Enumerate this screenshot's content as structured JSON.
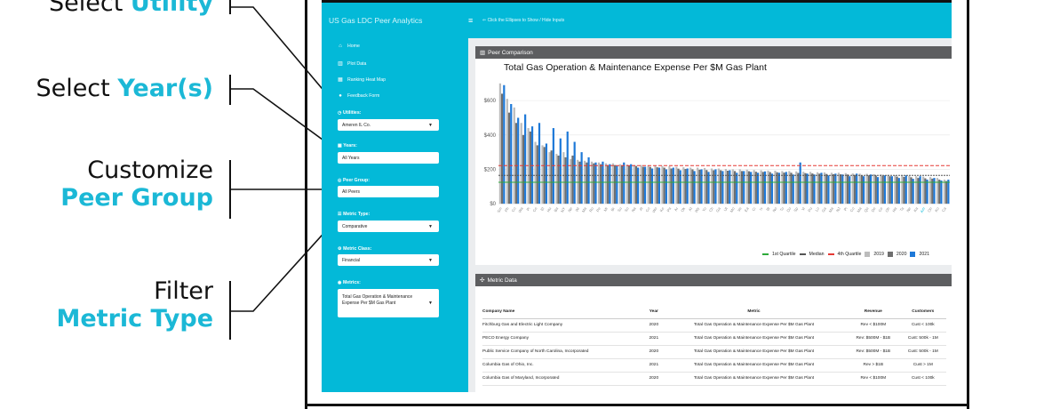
{
  "callouts": {
    "utility": {
      "plain": "Select ",
      "accent": "Utility"
    },
    "years": {
      "plain": "Select ",
      "accent": "Year(s)"
    },
    "peer": {
      "plain": "Customize",
      "accent": "Peer Group"
    },
    "metric": {
      "plain": "Filter",
      "accent": "Metric Type"
    }
  },
  "header": {
    "app_title": "US Gas LDC Peer Analytics",
    "menu_icon": "hamburger-icon",
    "hint": "⇐ Click the Ellipses to Show / Hide Inputs"
  },
  "sidebar": {
    "nav": [
      {
        "icon": "home-icon",
        "glyph": "⌂",
        "label": "Home"
      },
      {
        "icon": "chart-icon",
        "glyph": "▥",
        "label": "Plot Data"
      },
      {
        "icon": "table-icon",
        "glyph": "▦",
        "label": "Ranking Heat Map"
      },
      {
        "icon": "comment-icon",
        "glyph": "●",
        "label": "Feedback Form"
      }
    ],
    "utilities": {
      "label": "Utilities:",
      "value": "Ameren IL Co."
    },
    "years": {
      "label": "Years:",
      "value": "All Years"
    },
    "peer_group": {
      "label": "Peer Group:",
      "value": "All Peers"
    },
    "metric_type": {
      "label": "Metric Type:",
      "value": "Comparative"
    },
    "metric_class": {
      "label": "Metric Class:",
      "value": "Financial"
    },
    "metrics": {
      "label": "Metrics:",
      "value": "Total Gas Operation & Maintenance Expense Per $M Gas Plant"
    }
  },
  "peer_panel": {
    "title": "Peer Comparison",
    "chart_title": "Total Gas Operation & Maintenance Expense Per $M Gas Plant"
  },
  "chart_data": {
    "type": "bar",
    "title": "Total Gas Operation & Maintenance Expense Per $M Gas Plant",
    "xlabel": "",
    "ylabel": "",
    "yticks": [
      "$0",
      "$200",
      "$400",
      "$600"
    ],
    "ylim": [
      -20,
      730
    ],
    "reference_lines": {
      "first_quartile": 125,
      "median": 165,
      "fourth_quartile": 222
    },
    "series": [
      {
        "name": "2019",
        "color": "#bcbcbc",
        "values": [
          700,
          610,
          560,
          470,
          440,
          360,
          340,
          300,
          290,
          300,
          260,
          255,
          250,
          245,
          240,
          235,
          235,
          230,
          228,
          225,
          225,
          222,
          220,
          220,
          218,
          215,
          212,
          210,
          210,
          208,
          205,
          205,
          202,
          200,
          200,
          198,
          196,
          195,
          193,
          192,
          190,
          190,
          188,
          186,
          185,
          183,
          182,
          180,
          180,
          178,
          176,
          175,
          174,
          172,
          170,
          168,
          166,
          165,
          162,
          160,
          158,
          155,
          150,
          140
        ]
      },
      {
        "name": "2020",
        "color": "#6f6f6f",
        "values": [
          640,
          530,
          470,
          400,
          420,
          340,
          330,
          310,
          280,
          270,
          280,
          245,
          240,
          235,
          230,
          225,
          225,
          224,
          222,
          220,
          215,
          214,
          212,
          210,
          205,
          204,
          202,
          200,
          198,
          196,
          195,
          195,
          192,
          190,
          190,
          189,
          186,
          185,
          184,
          183,
          181,
          180,
          179,
          178,
          176,
          175,
          173,
          172,
          171,
          170,
          168,
          166,
          165,
          164,
          162,
          160,
          158,
          156,
          154,
          150,
          148,
          146,
          140,
          132
        ]
      },
      {
        "name": "2021",
        "color": "#1e79d8",
        "values": [
          690,
          580,
          500,
          520,
          450,
          470,
          350,
          440,
          380,
          420,
          360,
          300,
          270,
          240,
          245,
          230,
          220,
          240,
          230,
          210,
          215,
          205,
          210,
          200,
          210,
          195,
          205,
          190,
          200,
          185,
          200,
          190,
          195,
          180,
          190,
          185,
          180,
          188,
          175,
          180,
          185,
          170,
          240,
          175,
          170,
          180,
          165,
          175,
          170,
          160,
          175,
          160,
          170,
          155,
          165,
          160,
          150,
          165,
          145,
          160,
          140,
          150,
          135,
          140
        ]
      }
    ],
    "categories": [
      "Sm",
      "Ph",
      "Co",
      "Wa",
      "Pi",
      "Ce",
      "El",
      "Hu",
      "Ba",
      "NY",
      "Ne",
      "Wi",
      "Ma",
      "Ro",
      "Pe",
      "Mi",
      "Br",
      "Su",
      "So",
      "Na",
      "Al",
      "Co",
      "Wo",
      "Ke",
      "Pa",
      "Ar",
      "Ok",
      "At",
      "Wy",
      "Yo",
      "Ch",
      "Ga",
      "Ut",
      "Mo",
      "Ve",
      "Ea",
      "Ci",
      "Iv",
      "Bl",
      "No",
      "To",
      "Do",
      "Sp",
      "Vi",
      "Pu",
      "Lo",
      "Ga",
      "Ma",
      "NJ",
      "Pi",
      "Co",
      "Ma",
      "Qu",
      "De",
      "Ce",
      "Oh",
      "Ha",
      "Ta",
      "Ne",
      "Ka",
      "Am",
      "On",
      "Ko",
      "Ca"
    ],
    "highlight_index": 60,
    "legend": [
      {
        "kind": "line",
        "label": "1st Quartile",
        "color": "#2eaa3a"
      },
      {
        "kind": "line",
        "label": "Median",
        "color": "#555555"
      },
      {
        "kind": "line",
        "label": "4th Quartile",
        "color": "#e53935"
      },
      {
        "kind": "box",
        "label": "2019",
        "color": "#bcbcbc"
      },
      {
        "kind": "box",
        "label": "2020",
        "color": "#6f6f6f"
      },
      {
        "kind": "box",
        "label": "2021",
        "color": "#1e79d8"
      }
    ]
  },
  "metric_panel": {
    "title": "Metric Data",
    "columns": [
      "Company Name",
      "Year",
      "Metric",
      "Revenue",
      "Customers"
    ],
    "rows": [
      [
        "Fitchburg Gas and Electric Light Company",
        "2020",
        "Total Gas Operation & Maintenance Expense Per $M Gas Plant",
        "Rev < $100M",
        "Cust < 100k"
      ],
      [
        "PECO Energy Company",
        "2021",
        "Total Gas Operation & Maintenance Expense Per $M Gas Plant",
        "Rev: $500M - $1B",
        "Cust: 500k - 1M"
      ],
      [
        "Public Service Company of North Carolina, Incorporated",
        "2020",
        "Total Gas Operation & Maintenance Expense Per $M Gas Plant",
        "Rev: $500M - $1B",
        "Cust: 500k - 1M"
      ],
      [
        "Columbia Gas of Ohio, Inc.",
        "2021",
        "Total Gas Operation & Maintenance Expense Per $M Gas Plant",
        "Rev > $1B",
        "Cust > 1M"
      ],
      [
        "Columbia Gas of Maryland, Incorporated",
        "2020",
        "Total Gas Operation & Maintenance Expense Per $M Gas Plant",
        "Rev < $100M",
        "Cust < 100k"
      ]
    ]
  }
}
